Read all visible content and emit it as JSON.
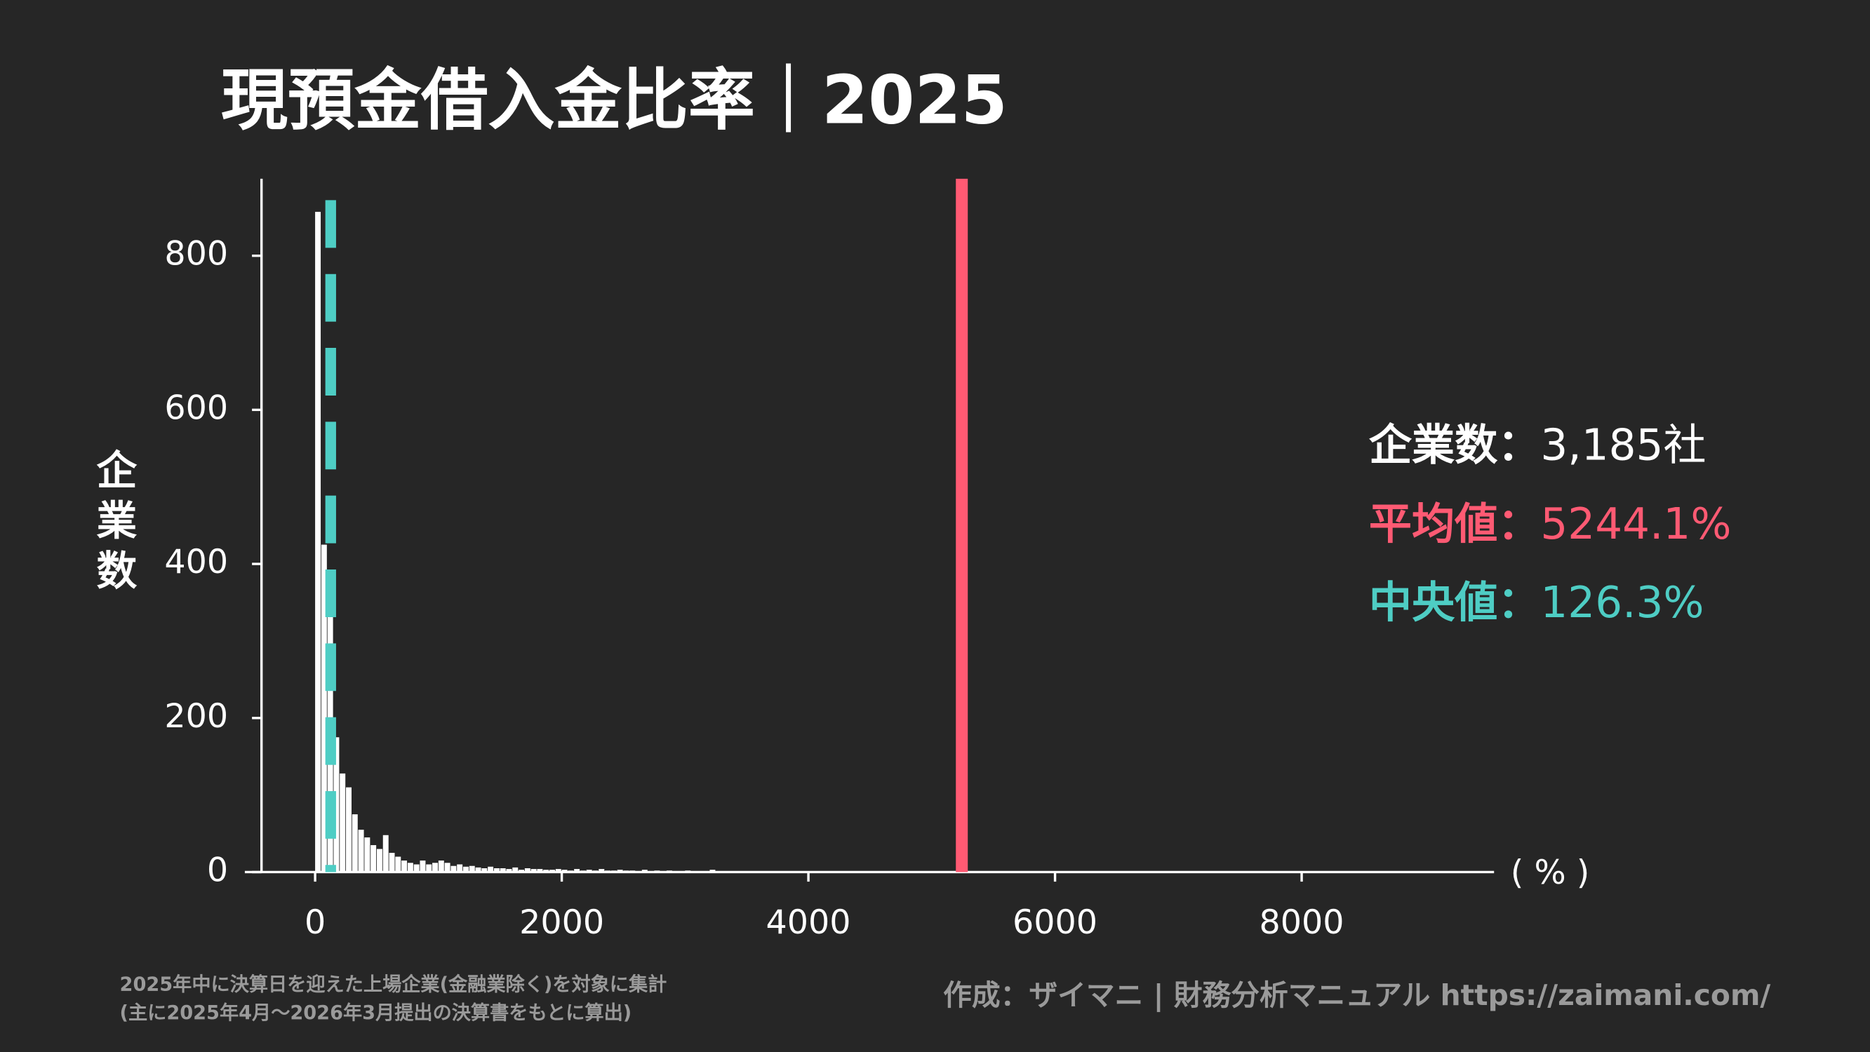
{
  "chart_data": {
    "type": "histogram",
    "title": "現預金借入金比率｜2025",
    "y_label": "企業数",
    "x_unit": "( % )",
    "color": "#ffffff",
    "bins": [
      0,
      50,
      100,
      150,
      200,
      250,
      300,
      350,
      400,
      450,
      500,
      550,
      600,
      650,
      700,
      750,
      800,
      850,
      900,
      950,
      1000,
      1050,
      1100,
      1150,
      1200,
      1250,
      1300,
      1350,
      1400,
      1450,
      1500,
      1550,
      1600,
      1650,
      1700,
      1750,
      1800,
      1850,
      1900,
      1950,
      2000,
      2050,
      2100,
      2150,
      2200,
      2250,
      2300,
      2350,
      2400,
      2450,
      2500,
      2550,
      2600,
      2650,
      2700,
      2750,
      2800,
      2850,
      2900,
      2950,
      3000,
      3050,
      3100,
      3150,
      3200,
      3250,
      3300,
      3350,
      3400,
      3450,
      3500,
      3550,
      3600,
      3650,
      3700,
      3750,
      3800,
      3850,
      3900,
      3950,
      4000,
      4050,
      4100,
      4150,
      4200,
      4250,
      4300,
      4350,
      4400,
      4450,
      4500
    ],
    "values": [
      857,
      425,
      350,
      175,
      128,
      110,
      75,
      55,
      45,
      35,
      30,
      48,
      25,
      20,
      15,
      12,
      10,
      15,
      10,
      12,
      15,
      12,
      8,
      10,
      7,
      8,
      6,
      5,
      7,
      5,
      5,
      4,
      6,
      3,
      5,
      4,
      4,
      3,
      3,
      4,
      3,
      2,
      4,
      2,
      3,
      2,
      4,
      2,
      2,
      3,
      2,
      2,
      1,
      3,
      1,
      2,
      1,
      2,
      1,
      1,
      2,
      1,
      1,
      1,
      3,
      1,
      1,
      0,
      1,
      0,
      1,
      0,
      1,
      0,
      0,
      1,
      0,
      1,
      0,
      0,
      1,
      1,
      0,
      1,
      1,
      0,
      0,
      1,
      0,
      0
    ],
    "xlim": [
      -570,
      9560
    ],
    "ylim": [
      0,
      900
    ],
    "xticks": [
      0,
      2000,
      4000,
      6000,
      8000
    ],
    "yticks": [
      0,
      200,
      400,
      600,
      800
    ],
    "stats": {
      "count": {
        "label": "企業数：",
        "value_label": "3,185社",
        "value": 3185,
        "color": "#ffffff"
      },
      "mean": {
        "label": "平均値：",
        "value_label": "5244.1%",
        "value": 5244.1,
        "color": "#ff5a73"
      },
      "median": {
        "label": "中央値：",
        "value_label": "126.3%",
        "value": 126.3,
        "color": "#4ecdc4"
      }
    },
    "footnote": [
      "2025年中に決算日を迎えた上場企業(金融業除く)を対象に集計",
      "(主に2025年4月〜2026年3月提出の決算書をもとに算出)"
    ],
    "credit": "作成：ザイマニ | 財務分析マニュアル https://zaimani.com/"
  }
}
